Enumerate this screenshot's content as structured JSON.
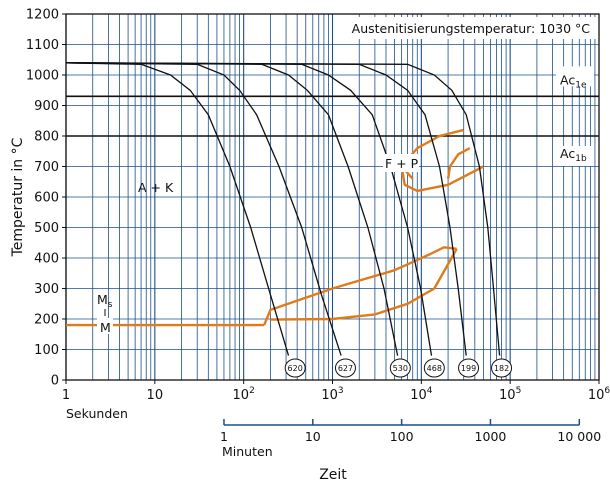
{
  "chart_data": {
    "type": "line",
    "title": "",
    "annotation_box": "Austenitisierungstemperatur: 1030 °C",
    "ylabel": "Temperatur in °C",
    "xlabel": "Zeit",
    "ylim": [
      0,
      1200
    ],
    "y_ticks": [
      "0",
      "100",
      "200",
      "300",
      "400",
      "500",
      "600",
      "700",
      "800",
      "900",
      "1000",
      "1100",
      "1200"
    ],
    "x_scale": "log",
    "xlim_seconds": [
      1,
      1000000
    ],
    "x_ticks_seconds": [
      {
        "v": 1,
        "base": "1",
        "exp": ""
      },
      {
        "v": 10,
        "base": "10",
        "exp": ""
      },
      {
        "v": 100,
        "base": "10",
        "exp": "2"
      },
      {
        "v": 1000,
        "base": "10",
        "exp": "3"
      },
      {
        "v": 10000,
        "base": "10",
        "exp": "4"
      },
      {
        "v": 100000,
        "base": "10",
        "exp": "5"
      },
      {
        "v": 1000000,
        "base": "10",
        "exp": "6"
      }
    ],
    "seconds_axis_label": "Sekunden",
    "minutes_axis_label": "Minuten",
    "x_ticks_minutes": [
      "1",
      "10",
      "100",
      "1000",
      "10 000"
    ],
    "reference_lines": [
      {
        "name": "Ac1e",
        "base": "Ac",
        "sub": "1e",
        "y": 930
      },
      {
        "name": "Ac1b",
        "base": "Ac",
        "sub": "1b",
        "y": 800
      }
    ],
    "region_labels": {
      "ak": "A + K",
      "fp": "F + P",
      "ms": "Ms",
      "ms_base": "M",
      "ms_sub": "s",
      "m": "M"
    },
    "cooling_curves": [
      {
        "hardness": "620",
        "end_seconds": 380,
        "points": [
          [
            1,
            1040
          ],
          [
            7,
            1035
          ],
          [
            15,
            1000
          ],
          [
            25,
            950
          ],
          [
            40,
            870
          ],
          [
            70,
            700
          ],
          [
            120,
            500
          ],
          [
            200,
            280
          ],
          [
            320,
            80
          ]
        ]
      },
      {
        "hardness": "627",
        "end_seconds": 1400,
        "points": [
          [
            1,
            1040
          ],
          [
            30,
            1035
          ],
          [
            60,
            1000
          ],
          [
            90,
            950
          ],
          [
            140,
            870
          ],
          [
            250,
            700
          ],
          [
            450,
            500
          ],
          [
            750,
            280
          ],
          [
            1250,
            80
          ]
        ]
      },
      {
        "hardness": "530",
        "end_seconds": 5800,
        "points": [
          [
            1,
            1040
          ],
          [
            160,
            1035
          ],
          [
            320,
            1000
          ],
          [
            520,
            950
          ],
          [
            900,
            870
          ],
          [
            1500,
            700
          ],
          [
            2500,
            500
          ],
          [
            3800,
            300
          ],
          [
            5400,
            80
          ]
        ]
      },
      {
        "hardness": "468",
        "end_seconds": 14000,
        "points": [
          [
            1,
            1040
          ],
          [
            450,
            1035
          ],
          [
            900,
            1000
          ],
          [
            1600,
            950
          ],
          [
            2800,
            870
          ],
          [
            4500,
            700
          ],
          [
            7000,
            500
          ],
          [
            9800,
            300
          ],
          [
            13000,
            80
          ]
        ]
      },
      {
        "hardness": "199",
        "end_seconds": 34000,
        "points": [
          [
            1,
            1040
          ],
          [
            2000,
            1035
          ],
          [
            4000,
            1000
          ],
          [
            7000,
            950
          ],
          [
            11000,
            870
          ],
          [
            16000,
            700
          ],
          [
            21000,
            500
          ],
          [
            26000,
            300
          ],
          [
            32000,
            80
          ]
        ]
      },
      {
        "hardness": "182",
        "end_seconds": 80000,
        "points": [
          [
            1,
            1040
          ],
          [
            7000,
            1035
          ],
          [
            14000,
            1000
          ],
          [
            22000,
            950
          ],
          [
            32000,
            870
          ],
          [
            45000,
            700
          ],
          [
            56000,
            500
          ],
          [
            65000,
            300
          ],
          [
            76000,
            80
          ]
        ]
      }
    ],
    "transformation_lines": [
      {
        "name": "M",
        "points": [
          [
            1,
            180
          ],
          [
            170,
            180
          ]
        ]
      },
      {
        "name": "bainite-start",
        "points": [
          [
            170,
            180
          ],
          [
            200,
            230
          ],
          [
            1000,
            300
          ],
          [
            5000,
            360
          ],
          [
            12000,
            410
          ],
          [
            18000,
            435
          ],
          [
            25000,
            430
          ]
        ]
      },
      {
        "name": "bainite-end",
        "points": [
          [
            200,
            198
          ],
          [
            1000,
            200
          ],
          [
            3000,
            215
          ],
          [
            7000,
            250
          ],
          [
            14000,
            300
          ],
          [
            20000,
            380
          ],
          [
            25000,
            430
          ]
        ]
      },
      {
        "name": "ferrite-pearlite-start",
        "points": [
          [
            8000,
            660
          ],
          [
            6000,
            700
          ],
          [
            9000,
            760
          ],
          [
            16000,
            800
          ],
          [
            30000,
            820
          ]
        ]
      },
      {
        "name": "ferrite-pearlite-end",
        "points": [
          [
            6000,
            700
          ],
          [
            6500,
            640
          ],
          [
            9000,
            620
          ],
          [
            20000,
            640
          ],
          [
            50000,
            700
          ]
        ]
      },
      {
        "name": "fp-notch",
        "points": [
          [
            20000,
            660
          ],
          [
            21000,
            700
          ],
          [
            26000,
            740
          ],
          [
            35000,
            760
          ]
        ]
      }
    ],
    "colors": {
      "cooling": "#111111",
      "transformation": "#e07b1a",
      "grid": "#1a4f8b",
      "reference": "#111111"
    },
    "grid": true
  }
}
